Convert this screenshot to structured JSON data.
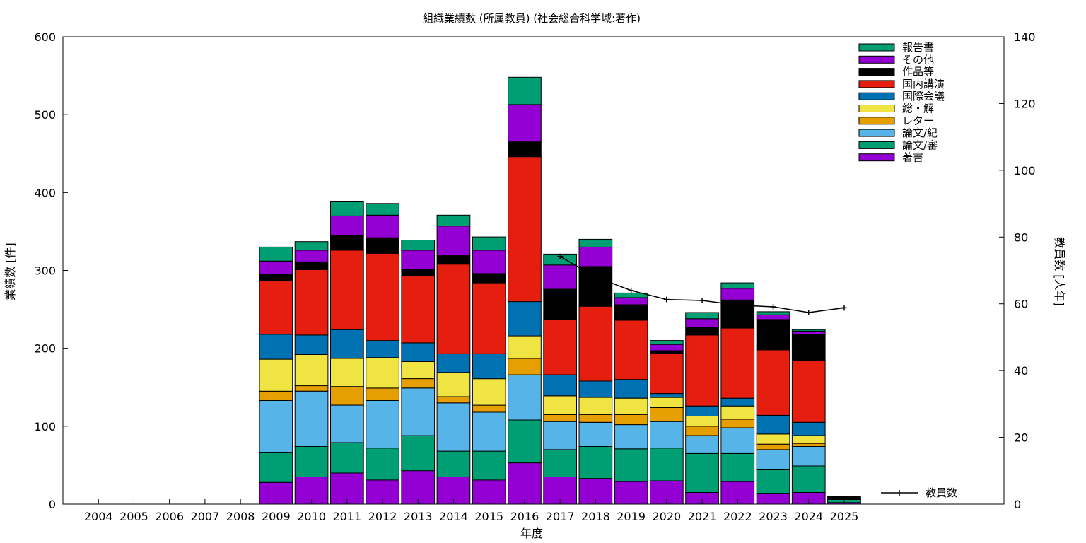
{
  "chart_data": {
    "type": "bar",
    "stacked": true,
    "title": "組織業績数 (所属教員) (社会総合科学域:著作)",
    "xlabel": "年度",
    "ylabel": "業績数 [件]",
    "y2label": "教員数 [人年]",
    "ylim": [
      0,
      600
    ],
    "y2lim": [
      0,
      140
    ],
    "yticks": [
      0,
      100,
      200,
      300,
      400,
      500,
      600
    ],
    "y2ticks": [
      0,
      20,
      40,
      60,
      80,
      100,
      120,
      140
    ],
    "grid": false,
    "legend_position": "top-right",
    "categories": [
      "2004",
      "2005",
      "2006",
      "2007",
      "2008",
      "2009",
      "2010",
      "2011",
      "2012",
      "2013",
      "2014",
      "2015",
      "2016",
      "2017",
      "2018",
      "2019",
      "2020",
      "2021",
      "2022",
      "2023",
      "2024",
      "2025"
    ],
    "series": [
      {
        "name": "著書",
        "color": "#9400d3",
        "values": [
          0,
          0,
          0,
          0,
          0,
          28,
          35,
          40,
          31,
          43,
          35,
          31,
          53,
          35,
          33,
          29,
          30,
          15,
          29,
          14,
          15,
          2
        ]
      },
      {
        "name": "論文/審",
        "color": "#009e73",
        "values": [
          0,
          0,
          0,
          0,
          0,
          38,
          39,
          39,
          41,
          45,
          33,
          37,
          55,
          35,
          41,
          42,
          42,
          50,
          36,
          30,
          34,
          4
        ]
      },
      {
        "name": "論文/紀",
        "color": "#56b4e9",
        "values": [
          0,
          0,
          0,
          0,
          0,
          67,
          71,
          48,
          61,
          61,
          62,
          50,
          58,
          36,
          31,
          31,
          34,
          23,
          33,
          26,
          25,
          0
        ]
      },
      {
        "name": "レター",
        "color": "#e69f00",
        "values": [
          0,
          0,
          0,
          0,
          0,
          12,
          7,
          24,
          16,
          12,
          8,
          9,
          21,
          9,
          10,
          13,
          18,
          12,
          11,
          7,
          4,
          0
        ]
      },
      {
        "name": "総・解",
        "color": "#f0e442",
        "values": [
          0,
          0,
          0,
          0,
          0,
          41,
          40,
          36,
          39,
          22,
          31,
          34,
          29,
          24,
          22,
          21,
          13,
          13,
          17,
          13,
          10,
          0
        ]
      },
      {
        "name": "国際会議",
        "color": "#0072b2",
        "values": [
          0,
          0,
          0,
          0,
          0,
          32,
          25,
          37,
          22,
          24,
          24,
          32,
          44,
          27,
          21,
          24,
          5,
          13,
          10,
          24,
          17,
          0
        ]
      },
      {
        "name": "国内講演",
        "color": "#e51e10",
        "values": [
          0,
          0,
          0,
          0,
          0,
          69,
          84,
          102,
          112,
          86,
          115,
          91,
          186,
          71,
          96,
          76,
          51,
          91,
          90,
          84,
          79,
          0
        ]
      },
      {
        "name": "作品等",
        "color": "#000000",
        "values": [
          0,
          0,
          0,
          0,
          0,
          8,
          10,
          19,
          20,
          8,
          11,
          12,
          19,
          39,
          51,
          20,
          4,
          10,
          36,
          39,
          34,
          4
        ]
      },
      {
        "name": "その他",
        "color": "#9400d3",
        "values": [
          0,
          0,
          0,
          0,
          0,
          17,
          15,
          25,
          29,
          25,
          38,
          30,
          48,
          31,
          25,
          9,
          8,
          11,
          15,
          6,
          4,
          0
        ]
      },
      {
        "name": "報告書",
        "color": "#009e73",
        "values": [
          0,
          0,
          0,
          0,
          0,
          18,
          11,
          19,
          15,
          13,
          14,
          17,
          35,
          14,
          10,
          6,
          5,
          8,
          7,
          4,
          2,
          0
        ]
      }
    ],
    "line_series": {
      "name": "教員数",
      "color": "#000000",
      "axis": "y2",
      "x": [
        "2017",
        "2018",
        "2019",
        "2020",
        "2021",
        "2022",
        "2023",
        "2024",
        "2025"
      ],
      "values": [
        74.2,
        68.0,
        64.0,
        61.3,
        61.0,
        59.6,
        59.1,
        57.4,
        58.8
      ]
    }
  }
}
